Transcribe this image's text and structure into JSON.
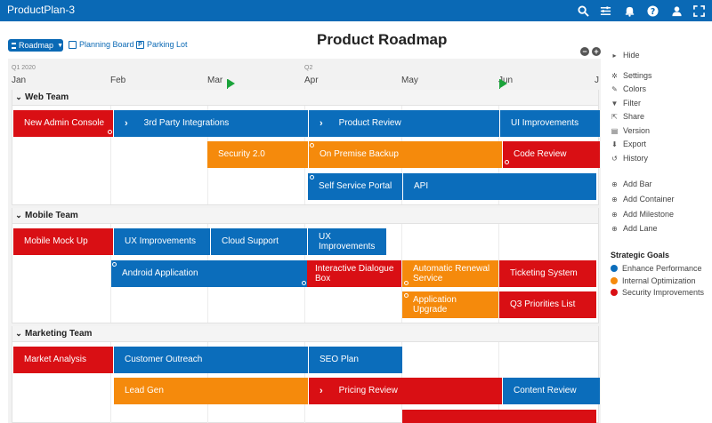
{
  "app": {
    "title": "ProductPlan-3"
  },
  "header": {
    "page_title": "Product Roadmap",
    "view_button": "Roadmap",
    "links": [
      "Planning Board",
      "Parking Lot"
    ]
  },
  "timeline": {
    "quarters": [
      "Q1 2020",
      "Q2"
    ],
    "months": [
      "Jan",
      "Feb",
      "Mar",
      "Apr",
      "May",
      "Jun",
      "J"
    ]
  },
  "lanes": {
    "web": "Web Team",
    "mobile": "Mobile Team",
    "marketing": "Marketing Team"
  },
  "bars": {
    "new_admin_console": "New Admin Console",
    "third_party": "3rd Party Integrations",
    "product_review": "Product Review",
    "ui_improvements": "UI Improvements",
    "security_20": "Security 2.0",
    "on_premise": "On Premise Backup",
    "code_review": "Code Review",
    "self_service": "Self Service Portal",
    "api": "API",
    "mobile_mock": "Mobile Mock Up",
    "ux_improvements": "UX Improvements",
    "cloud_support": "Cloud Support",
    "ux_improvements_2": "UX Improvements",
    "android_app": "Android Application",
    "interactive_dialogue": "Interactive Dialogue Box",
    "auto_renewal": "Automatic Renewal Service",
    "ticketing": "Ticketing System",
    "app_upgrade": "Application Upgrade",
    "q3_priorities": "Q3 Priorities List",
    "market_analysis": "Market Analysis",
    "customer_outreach": "Customer Outreach",
    "seo_plan": "SEO Plan",
    "lead_gen": "Lead Gen",
    "pricing_review": "Pricing Review",
    "content_review": "Content Review"
  },
  "sidebar": {
    "hide": "Hide",
    "menu": [
      "Settings",
      "Colors",
      "Filter",
      "Share",
      "Version",
      "Export",
      "History"
    ],
    "add": [
      "Add Bar",
      "Add Container",
      "Add Milestone",
      "Add Lane"
    ],
    "legend_title": "Strategic Goals",
    "goals": [
      {
        "label": "Enhance Performance",
        "color": "#0b6dbb"
      },
      {
        "label": "Internal Optimization",
        "color": "#f58a0c"
      },
      {
        "label": "Security Improvements",
        "color": "#d90f14"
      }
    ]
  }
}
